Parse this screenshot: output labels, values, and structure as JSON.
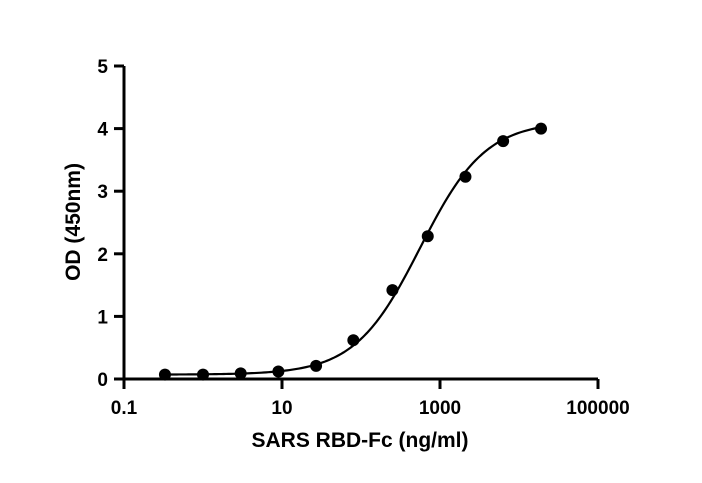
{
  "chart_data": {
    "type": "scatter",
    "title": "",
    "xlabel": "SARS RBD-Fc (ng/ml)",
    "ylabel": "OD (450nm)",
    "x_scale": "log",
    "xlim": [
      0.1,
      100000
    ],
    "ylim": [
      0,
      5
    ],
    "x_ticks": [
      0.1,
      10,
      1000,
      100000
    ],
    "x_tick_labels": [
      "0.1",
      "10",
      "1000",
      "100000"
    ],
    "y_ticks": [
      0,
      1,
      2,
      3,
      4,
      5
    ],
    "y_tick_labels": [
      "0",
      "1",
      "2",
      "3",
      "4",
      "5"
    ],
    "grid": false,
    "legend": "none",
    "series": [
      {
        "x": [
          0.33,
          1.0,
          3.0,
          9.0,
          27,
          80,
          250,
          700,
          2100,
          6300,
          19000
        ],
        "y": [
          0.07,
          0.07,
          0.09,
          0.12,
          0.21,
          0.62,
          1.42,
          2.28,
          3.23,
          3.8,
          4.0
        ],
        "marker": "circle",
        "color": "#000000",
        "fit": "4PL sigmoidal curve"
      }
    ]
  }
}
